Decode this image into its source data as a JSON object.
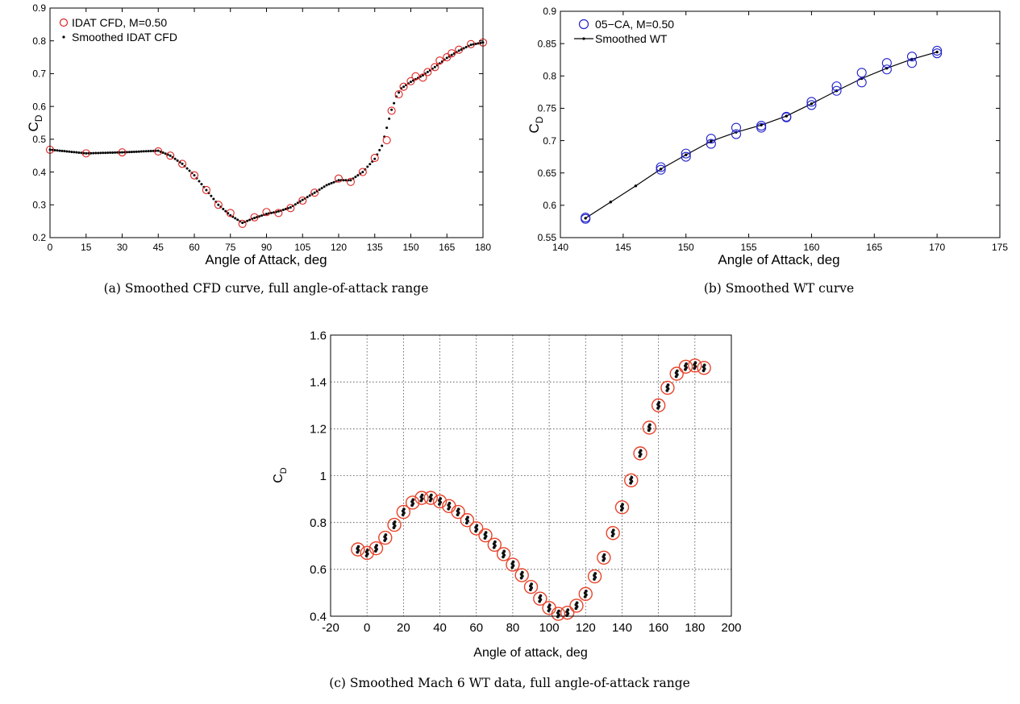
{
  "chart_data": [
    {
      "id": "a",
      "type": "scatter",
      "caption": "(a) Smoothed CFD curve, full angle-of-attack range",
      "xlabel": "Angle of Attack, deg",
      "ylabel_main": "C",
      "ylabel_sub": "D",
      "xlim": [
        0,
        180
      ],
      "ylim": [
        0.2,
        0.9
      ],
      "xticks": [
        0,
        15,
        30,
        45,
        60,
        75,
        90,
        105,
        120,
        135,
        150,
        165,
        180
      ],
      "yticks": [
        0.2,
        0.3,
        0.4,
        0.5,
        0.6,
        0.7,
        0.8,
        0.9
      ],
      "grid": false,
      "legend_position": "top-left",
      "series": [
        {
          "name": "IDAT CFD, M=0.50",
          "marker": "circle",
          "color": "#dd2222",
          "x": [
            0,
            15,
            30,
            45,
            50,
            55,
            60,
            65,
            70,
            75,
            80,
            85,
            90,
            95,
            100,
            105,
            110,
            120,
            125,
            130,
            135,
            140,
            142,
            145,
            147,
            150,
            152,
            155,
            157,
            160,
            162,
            165,
            167,
            170,
            175,
            180
          ],
          "y": [
            0.468,
            0.457,
            0.46,
            0.463,
            0.45,
            0.425,
            0.39,
            0.345,
            0.3,
            0.275,
            0.242,
            0.262,
            0.278,
            0.275,
            0.29,
            0.313,
            0.337,
            0.38,
            0.37,
            0.4,
            0.443,
            0.497,
            0.587,
            0.637,
            0.66,
            0.677,
            0.692,
            0.688,
            0.705,
            0.72,
            0.74,
            0.75,
            0.762,
            0.773,
            0.79,
            0.795
          ]
        },
        {
          "name": "Smoothed IDAT CFD",
          "marker": "dot",
          "color": "#000000",
          "curve_x": [
            0,
            15,
            30,
            45,
            50,
            55,
            60,
            65,
            70,
            75,
            80,
            85,
            90,
            95,
            100,
            105,
            110,
            115,
            120,
            125,
            130,
            135,
            138,
            140,
            142,
            144,
            146,
            150,
            155,
            160,
            165,
            170,
            175,
            180
          ],
          "curve_y": [
            0.468,
            0.457,
            0.46,
            0.465,
            0.45,
            0.425,
            0.39,
            0.345,
            0.3,
            0.268,
            0.245,
            0.26,
            0.272,
            0.28,
            0.292,
            0.315,
            0.337,
            0.36,
            0.375,
            0.375,
            0.4,
            0.44,
            0.48,
            0.535,
            0.59,
            0.63,
            0.655,
            0.675,
            0.695,
            0.72,
            0.748,
            0.77,
            0.788,
            0.795
          ],
          "step": 1
        }
      ]
    },
    {
      "id": "b",
      "type": "line",
      "caption": "(b) Smoothed WT curve",
      "xlabel": "Angle of Attack, deg",
      "ylabel_main": "C",
      "ylabel_sub": "D",
      "xlim": [
        140,
        175
      ],
      "ylim": [
        0.55,
        0.9
      ],
      "xticks": [
        140,
        145,
        150,
        155,
        160,
        165,
        170,
        175
      ],
      "yticks": [
        0.55,
        0.6,
        0.65,
        0.7,
        0.75,
        0.8,
        0.85,
        0.9
      ],
      "grid": false,
      "legend_position": "top-left",
      "series": [
        {
          "name": "05−CA, M=0.50",
          "marker": "circle",
          "color": "#2222cc",
          "x": [
            142,
            142,
            148,
            148,
            150,
            150,
            152,
            152,
            154,
            154,
            156,
            156,
            158,
            158,
            160,
            160,
            162,
            162,
            164,
            164,
            166,
            166,
            168,
            168,
            170,
            170
          ],
          "y": [
            0.579,
            0.581,
            0.655,
            0.659,
            0.675,
            0.68,
            0.695,
            0.703,
            0.71,
            0.72,
            0.72,
            0.723,
            0.736,
            0.737,
            0.755,
            0.76,
            0.777,
            0.784,
            0.79,
            0.805,
            0.81,
            0.82,
            0.82,
            0.83,
            0.835,
            0.839
          ]
        },
        {
          "name": "Smoothed WT",
          "marker": "dot-line",
          "color": "#000000",
          "curve_x": [
            142,
            144,
            146,
            148,
            150,
            152,
            154,
            156,
            158,
            160,
            162,
            164,
            166,
            168,
            170
          ],
          "curve_y": [
            0.58,
            0.605,
            0.63,
            0.656,
            0.678,
            0.699,
            0.713,
            0.724,
            0.738,
            0.757,
            0.777,
            0.796,
            0.812,
            0.826,
            0.837
          ],
          "step": 1
        }
      ]
    },
    {
      "id": "c",
      "type": "scatter",
      "caption": "(c) Smoothed Mach 6 WT data, full angle-of-attack range",
      "xlabel": "Angle of attack, deg",
      "ylabel_main": "C",
      "ylabel_sub": "D",
      "xlim": [
        -20,
        200
      ],
      "ylim": [
        0.4,
        1.6
      ],
      "xticks": [
        -20,
        0,
        20,
        40,
        60,
        80,
        100,
        120,
        140,
        160,
        180,
        200
      ],
      "yticks": [
        0.4,
        0.6,
        0.8,
        1,
        1.2,
        1.4,
        1.6
      ],
      "ytick_labels": [
        "0.4",
        "0.6",
        "0.8",
        "1",
        "1.2",
        "1.4",
        "1.6"
      ],
      "grid": true,
      "series": [
        {
          "name": "",
          "marker": "circle",
          "color": "#e8442a",
          "x": [
            -5,
            0,
            5,
            10,
            15,
            20,
            25,
            30,
            35,
            40,
            45,
            50,
            55,
            60,
            65,
            70,
            75,
            80,
            85,
            90,
            95,
            100,
            105,
            110,
            115,
            120,
            125,
            130,
            135,
            140,
            145,
            150,
            155,
            160,
            165,
            170,
            175,
            180,
            185
          ],
          "y": [
            0.685,
            0.67,
            0.69,
            0.735,
            0.79,
            0.845,
            0.885,
            0.905,
            0.905,
            0.89,
            0.87,
            0.845,
            0.81,
            0.775,
            0.745,
            0.705,
            0.665,
            0.62,
            0.575,
            0.525,
            0.475,
            0.435,
            0.41,
            0.415,
            0.445,
            0.495,
            0.57,
            0.65,
            0.755,
            0.865,
            0.98,
            1.095,
            1.205,
            1.3,
            1.375,
            1.435,
            1.465,
            1.47,
            1.46
          ]
        },
        {
          "name": "",
          "marker": "dot-cluster",
          "color": "#111111",
          "x": [
            -5,
            0,
            5,
            10,
            15,
            20,
            25,
            30,
            35,
            40,
            45,
            50,
            55,
            60,
            65,
            70,
            75,
            80,
            85,
            90,
            95,
            100,
            105,
            110,
            115,
            120,
            125,
            130,
            135,
            140,
            145,
            150,
            155,
            160,
            165,
            170,
            175,
            180,
            185
          ],
          "y": [
            0.685,
            0.67,
            0.69,
            0.735,
            0.79,
            0.845,
            0.885,
            0.905,
            0.905,
            0.89,
            0.87,
            0.845,
            0.81,
            0.775,
            0.745,
            0.705,
            0.665,
            0.62,
            0.575,
            0.525,
            0.475,
            0.435,
            0.41,
            0.415,
            0.445,
            0.495,
            0.57,
            0.65,
            0.755,
            0.865,
            0.98,
            1.095,
            1.205,
            1.3,
            1.375,
            1.435,
            1.465,
            1.47,
            1.46
          ]
        }
      ]
    }
  ]
}
